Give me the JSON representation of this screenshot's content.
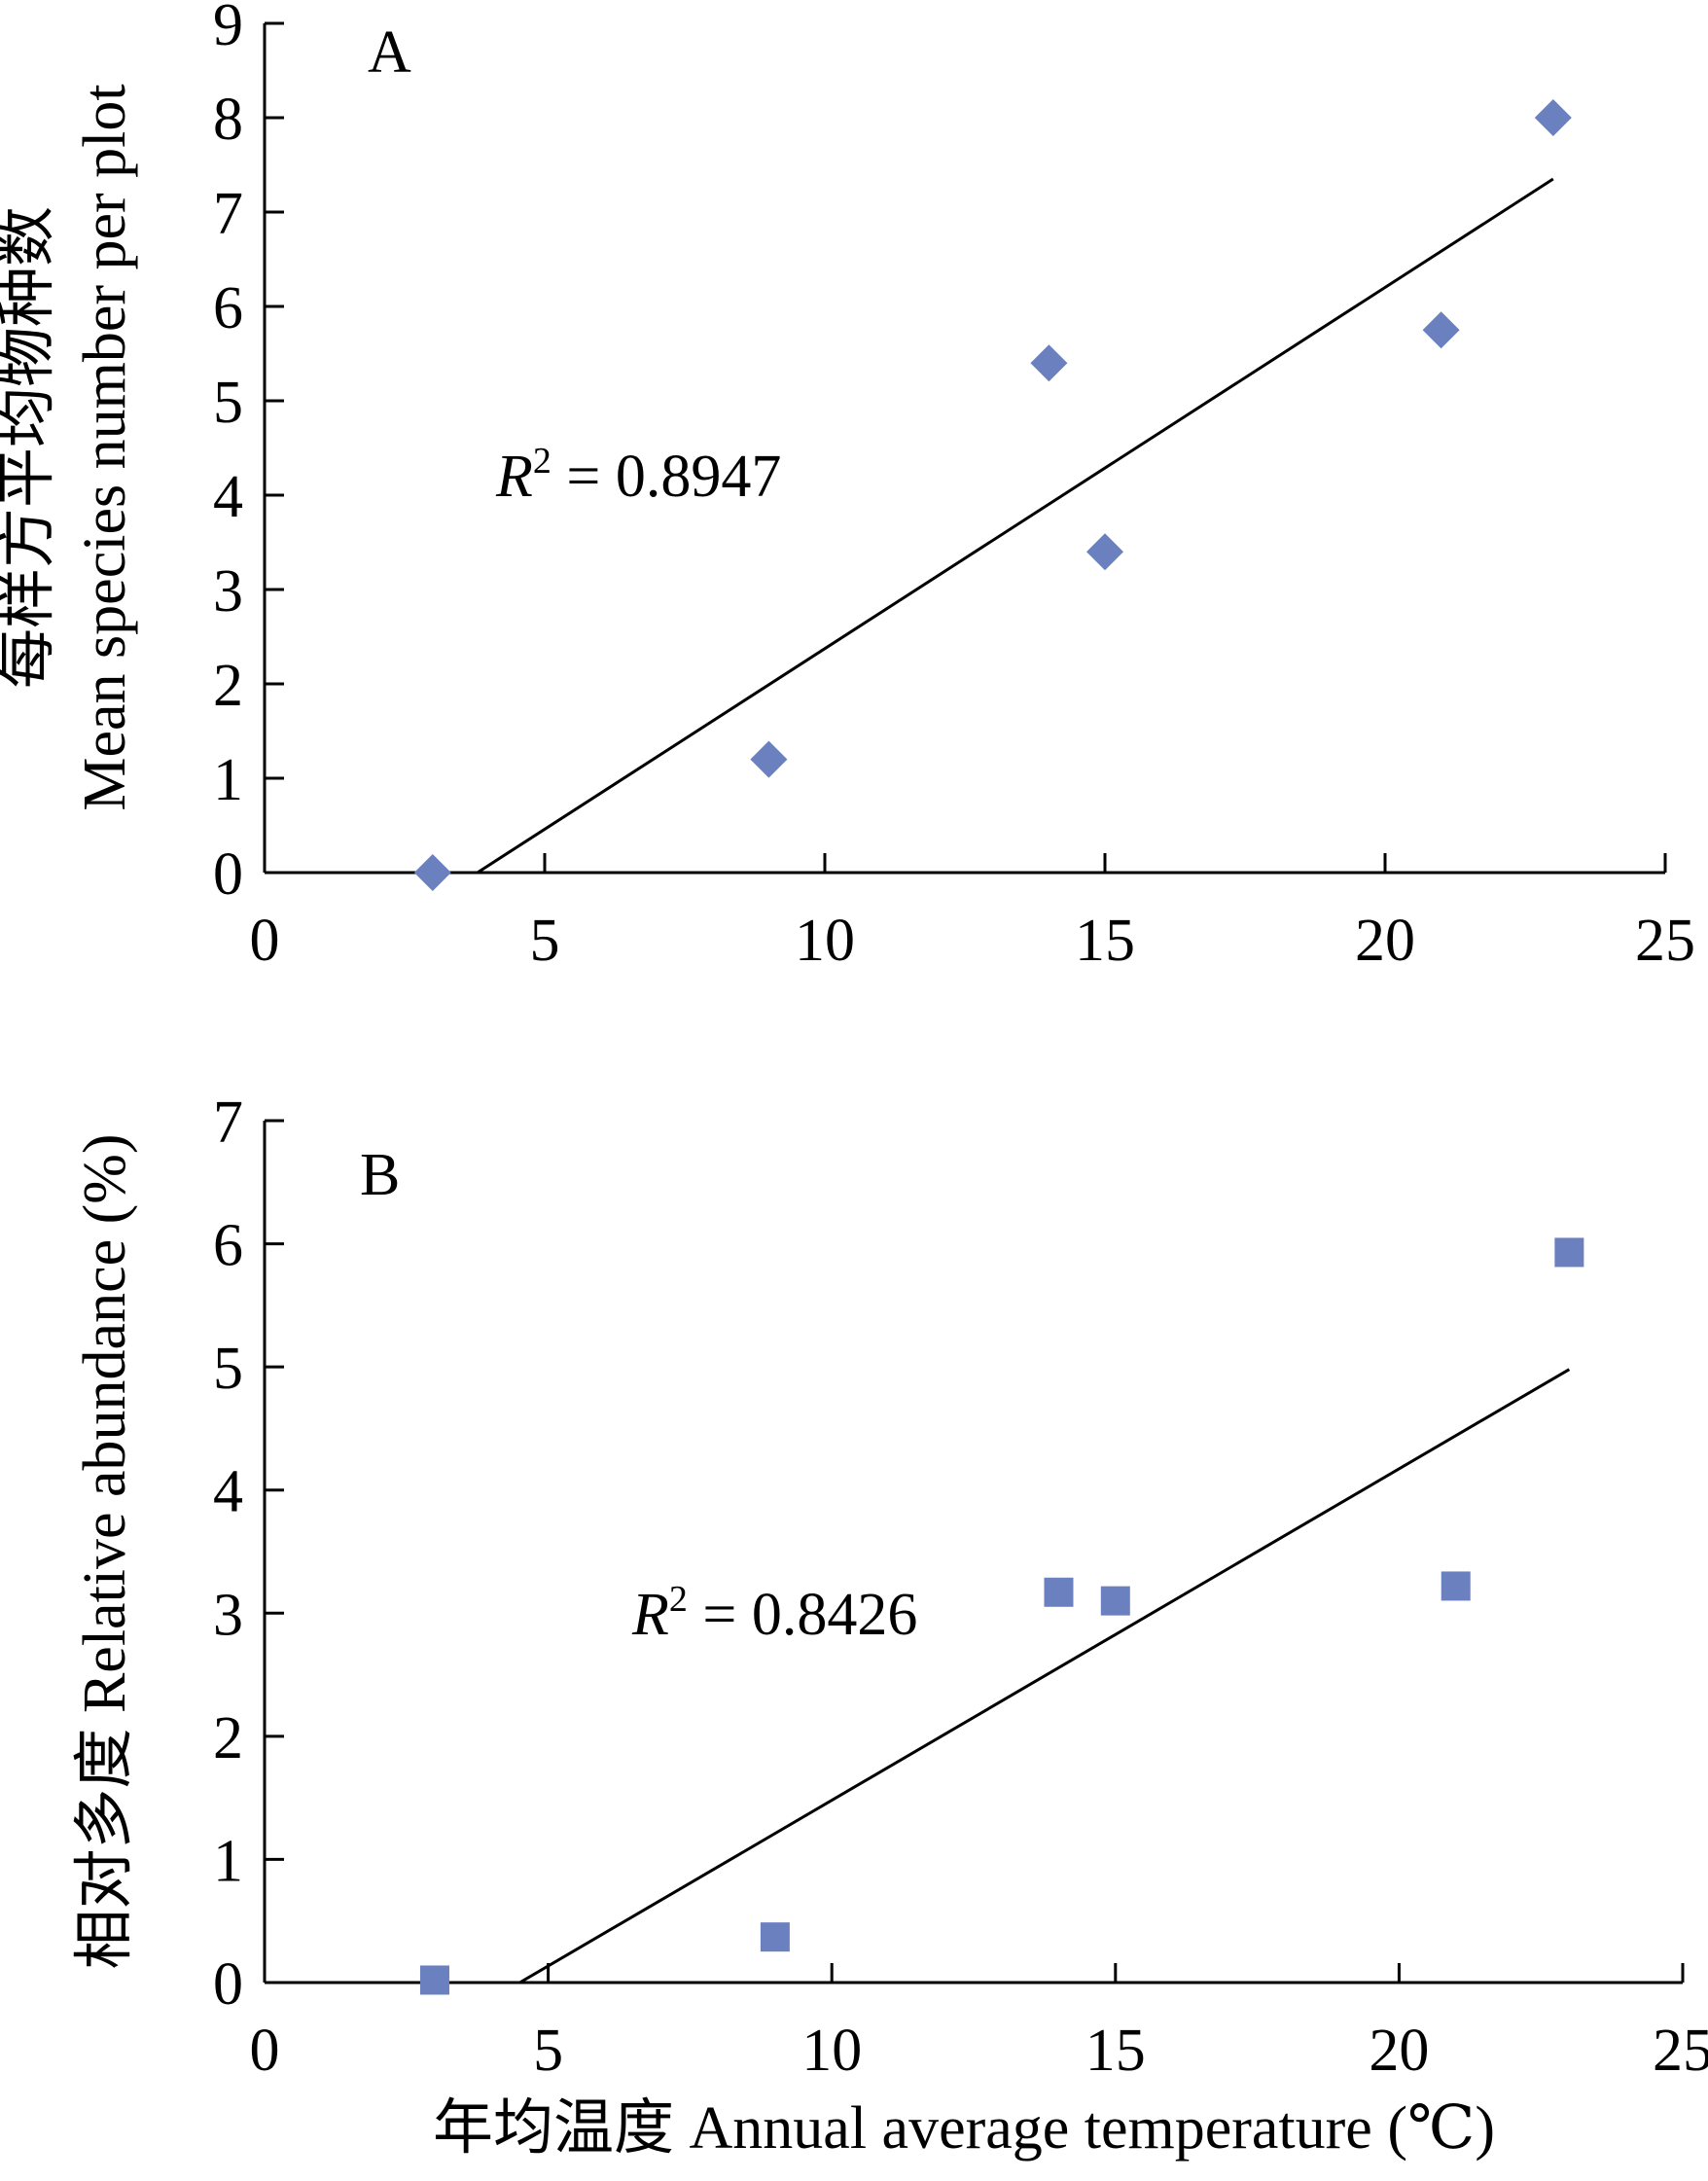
{
  "marker_color": "#6a80bf",
  "chart_data": [
    {
      "type": "scatter",
      "panel_label": "A",
      "marker": "diamond",
      "ylabel_lines": [
        "每样方平均物种数",
        "Mean species number per plot"
      ],
      "xlabel": "",
      "xlim": [
        0,
        25
      ],
      "ylim": [
        0,
        9
      ],
      "xticks": [
        "0",
        "5",
        "10",
        "15",
        "20",
        "25"
      ],
      "yticks": [
        "0",
        "1",
        "2",
        "3",
        "4",
        "5",
        "6",
        "7",
        "8",
        "9"
      ],
      "series": [
        {
          "x": [
            3,
            9,
            14,
            15,
            21,
            23
          ],
          "y": [
            0,
            1.2,
            5.4,
            3.4,
            5.75,
            8.0
          ]
        }
      ],
      "trendline": {
        "x": [
          3.8,
          23
        ],
        "y": [
          0,
          7.35
        ]
      },
      "r2_label": {
        "var": "R",
        "sup": "2",
        "rest": " = 0.8947"
      }
    },
    {
      "type": "scatter",
      "panel_label": "B",
      "marker": "square",
      "ylabel_lines": [
        "相对多度 Relative abundance (%)"
      ],
      "xlabel": "年均温度 Annual average temperature (℃)",
      "xlim": [
        0,
        25
      ],
      "ylim": [
        0,
        7
      ],
      "xticks": [
        "0",
        "5",
        "10",
        "15",
        "20",
        "25"
      ],
      "yticks": [
        "0",
        "1",
        "2",
        "3",
        "4",
        "5",
        "6",
        "7"
      ],
      "series": [
        {
          "x": [
            3,
            9,
            14,
            15,
            21,
            23
          ],
          "y": [
            0.02,
            0.37,
            3.17,
            3.1,
            3.22,
            5.93
          ]
        }
      ],
      "trendline": {
        "x": [
          4.5,
          23
        ],
        "y": [
          0,
          4.98
        ]
      },
      "r2_label": {
        "var": "R",
        "sup": "2",
        "rest": " = 0.8426"
      }
    }
  ]
}
